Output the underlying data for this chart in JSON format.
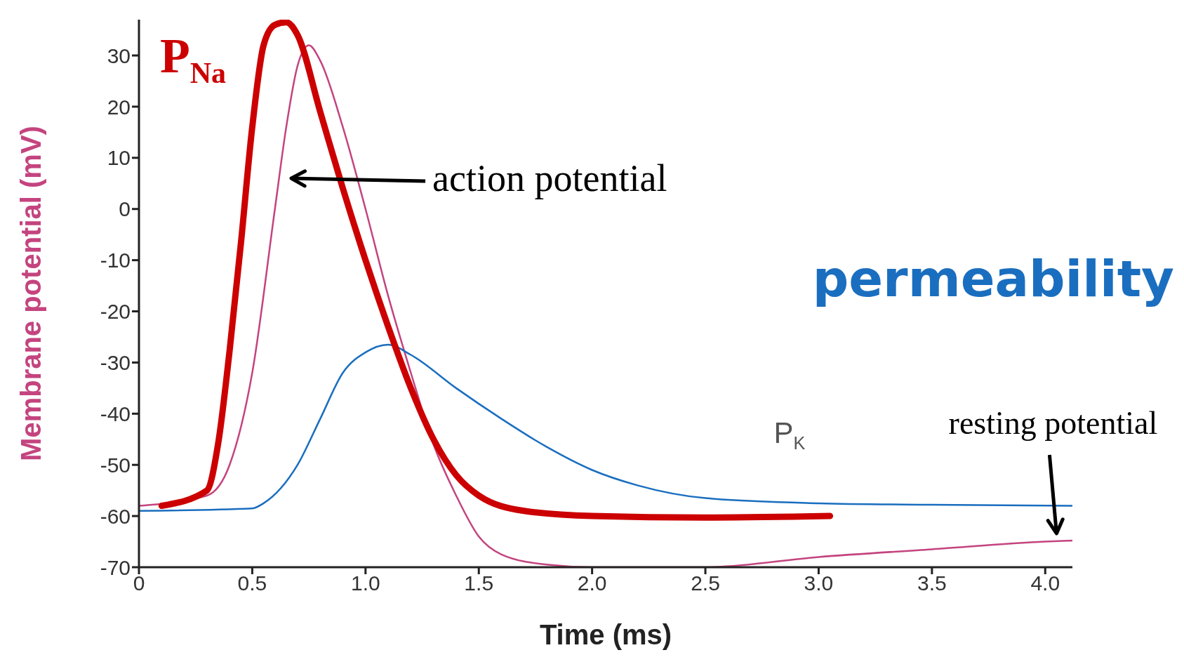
{
  "chart_data": {
    "type": "line",
    "xlabel": "Time (ms)",
    "ylabel": "Membrane potential (mV)",
    "xlim": [
      0,
      4.12
    ],
    "ylim": [
      -70,
      37
    ],
    "xticks": [
      0,
      0.5,
      {
        "value": 1,
        "label": "1.0"
      },
      1.5,
      {
        "value": 2,
        "label": "2.0"
      },
      2.5,
      {
        "value": 3,
        "label": "3.0"
      },
      3.5,
      {
        "value": 4,
        "label": "4.0"
      }
    ],
    "yticks": [
      -70,
      -60,
      -50,
      -40,
      -30,
      -20,
      -10,
      0,
      10,
      20,
      30
    ],
    "grid": false,
    "marker": "none",
    "line_style": "solid",
    "series": [
      {
        "color": "#c4447f",
        "x": [
          0,
          0.3,
          0.4,
          0.5,
          0.6,
          0.65,
          0.7,
          0.75,
          0.8,
          0.9,
          1.0,
          1.1,
          1.2,
          1.3,
          1.4,
          1.5,
          1.6,
          1.8,
          2.0,
          2.5,
          3.0,
          3.5,
          4.0,
          4.12
        ],
        "values": [
          -58,
          -56,
          -50,
          -32,
          0,
          16,
          28,
          32,
          29,
          16,
          0,
          -17,
          -32,
          -46,
          -56,
          -64,
          -67.5,
          -69.5,
          -70,
          -70,
          -68,
          -66.5,
          -65,
          -64.8
        ]
      },
      {
        "name": "P$_{K}$",
        "color": "#1a6ebf",
        "x": [
          0,
          0.5,
          0.55,
          0.7,
          0.8,
          0.9,
          1.0,
          1.1,
          1.2,
          1.4,
          1.6,
          1.8,
          2.0,
          2.2,
          2.5,
          3.0,
          3.5,
          4.12
        ],
        "values": [
          -59,
          -58.5,
          -57.5,
          -50,
          -41,
          -32,
          -28,
          -26.5,
          -28.5,
          -35,
          -41,
          -46.5,
          -51,
          -54,
          -56.5,
          -57.5,
          -57.8,
          -58
        ]
      },
      {
        "name": "P$_{Na}$",
        "color": "#cc0000",
        "x": [
          0.1,
          0.3,
          0.35,
          0.4,
          0.45,
          0.5,
          0.55,
          0.6,
          0.65,
          0.7,
          0.8,
          0.9,
          1.0,
          1.1,
          1.2,
          1.3,
          1.4,
          1.5,
          1.7,
          2.0,
          2.5,
          3.05
        ],
        "values": [
          -58,
          -55,
          -45.7,
          -27.7,
          -6.7,
          16,
          32,
          36,
          36.5,
          34,
          19,
          4,
          -10,
          -23,
          -35,
          -45,
          -52,
          -56,
          -59,
          -60,
          -60.3,
          -60
        ]
      }
    ],
    "annotations": [
      "action potential",
      "resting potential",
      "permeability"
    ]
  }
}
